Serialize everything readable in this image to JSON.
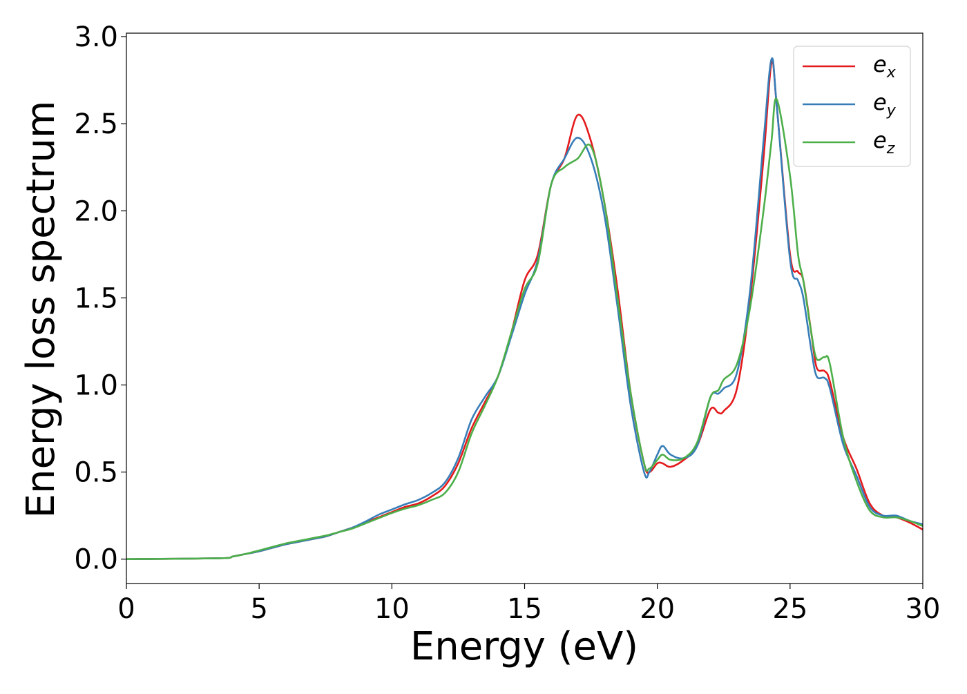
{
  "chart_data": {
    "type": "line",
    "title": "",
    "xlabel": "Energy (eV)",
    "ylabel": "Energy loss spectrum",
    "xlim": [
      0,
      30
    ],
    "ylim": [
      -0.14,
      3.02
    ],
    "xticks": [
      0,
      5,
      10,
      15,
      20,
      25,
      30
    ],
    "xtick_labels": [
      "0",
      "5",
      "10",
      "15",
      "20",
      "25",
      "30"
    ],
    "yticks": [
      0.0,
      0.5,
      1.0,
      1.5,
      2.0,
      2.5,
      3.0
    ],
    "ytick_labels": [
      "0.0",
      "0.5",
      "1.0",
      "1.5",
      "2.0",
      "2.5",
      "3.0"
    ],
    "grid": false,
    "legend_position": "top-right",
    "series": [
      {
        "name": "e_x",
        "label_base": "e",
        "label_sub": "x",
        "color": "#e41a1c",
        "x": [
          0,
          3.5,
          4,
          4.5,
          5,
          5.5,
          6,
          6.5,
          7,
          7.5,
          8,
          8.5,
          9,
          9.5,
          10,
          10.5,
          11,
          11.5,
          12,
          12.5,
          13,
          13.5,
          14,
          14.5,
          15,
          15.5,
          16,
          16.5,
          17,
          17.5,
          18,
          18.5,
          19,
          19.5,
          19.7,
          20,
          20.2,
          20.5,
          21,
          21.5,
          22,
          22.3,
          22.5,
          23,
          23.5,
          24,
          24.3,
          24.5,
          25,
          25.3,
          25.5,
          25.8,
          26,
          26.3,
          26.5,
          27,
          27.5,
          28,
          28.5,
          29,
          29.5,
          30
        ],
        "y": [
          0.0,
          0.005,
          0.015,
          0.03,
          0.045,
          0.065,
          0.085,
          0.1,
          0.115,
          0.13,
          0.155,
          0.18,
          0.21,
          0.24,
          0.27,
          0.3,
          0.32,
          0.36,
          0.42,
          0.55,
          0.75,
          0.9,
          1.05,
          1.3,
          1.6,
          1.75,
          2.15,
          2.3,
          2.55,
          2.4,
          2.05,
          1.55,
          0.95,
          0.55,
          0.5,
          0.55,
          0.55,
          0.53,
          0.57,
          0.65,
          0.86,
          0.84,
          0.85,
          0.98,
          1.5,
          2.3,
          2.85,
          2.6,
          1.75,
          1.65,
          1.6,
          1.3,
          1.1,
          1.08,
          1.02,
          0.7,
          0.52,
          0.32,
          0.25,
          0.24,
          0.21,
          0.17
        ]
      },
      {
        "name": "e_y",
        "label_base": "e",
        "label_sub": "y",
        "color": "#377eb8",
        "x": [
          0,
          3.5,
          4,
          4.5,
          5,
          5.5,
          6,
          6.5,
          7,
          7.5,
          8,
          8.5,
          9,
          9.5,
          10,
          10.5,
          11,
          11.5,
          12,
          12.5,
          13,
          13.5,
          14,
          14.5,
          15,
          15.5,
          16,
          16.5,
          17,
          17.5,
          18,
          18.5,
          19,
          19.5,
          19.7,
          20,
          20.2,
          20.5,
          21,
          21.5,
          22,
          22.3,
          22.5,
          23,
          23.5,
          24,
          24.3,
          24.5,
          25,
          25.3,
          25.5,
          25.8,
          26,
          26.3,
          26.5,
          27,
          27.5,
          28,
          28.5,
          29,
          29.5,
          30
        ],
        "y": [
          0.0,
          0.005,
          0.015,
          0.03,
          0.045,
          0.065,
          0.085,
          0.1,
          0.115,
          0.13,
          0.155,
          0.18,
          0.215,
          0.255,
          0.285,
          0.315,
          0.34,
          0.38,
          0.44,
          0.58,
          0.8,
          0.93,
          1.05,
          1.28,
          1.52,
          1.72,
          2.15,
          2.3,
          2.42,
          2.3,
          1.98,
          1.45,
          0.88,
          0.5,
          0.5,
          0.6,
          0.65,
          0.6,
          0.58,
          0.65,
          0.93,
          0.95,
          0.98,
          1.07,
          1.55,
          2.4,
          2.87,
          2.6,
          1.72,
          1.6,
          1.5,
          1.2,
          1.05,
          1.04,
          0.98,
          0.66,
          0.48,
          0.3,
          0.25,
          0.25,
          0.22,
          0.2
        ]
      },
      {
        "name": "e_z",
        "label_base": "e",
        "label_sub": "z",
        "color": "#4daf4a",
        "x": [
          0,
          3.5,
          4,
          4.5,
          5,
          5.5,
          6,
          6.5,
          7,
          7.5,
          8,
          8.5,
          9,
          9.5,
          10,
          10.5,
          11,
          11.5,
          12,
          12.5,
          13,
          13.5,
          14,
          14.5,
          15,
          15.5,
          16,
          16.5,
          17,
          17.5,
          18,
          18.5,
          19,
          19.5,
          19.7,
          20,
          20.2,
          20.5,
          21,
          21.5,
          22,
          22.3,
          22.5,
          23,
          23.5,
          24,
          24.3,
          24.5,
          25,
          25.3,
          25.5,
          25.8,
          26,
          26.3,
          26.5,
          27,
          27.5,
          28,
          28.5,
          29,
          29.5,
          30
        ],
        "y": [
          0.0,
          0.005,
          0.015,
          0.03,
          0.05,
          0.07,
          0.09,
          0.105,
          0.12,
          0.135,
          0.155,
          0.175,
          0.205,
          0.235,
          0.265,
          0.29,
          0.31,
          0.34,
          0.38,
          0.5,
          0.72,
          0.88,
          1.05,
          1.3,
          1.55,
          1.7,
          2.15,
          2.25,
          2.3,
          2.37,
          2.05,
          1.5,
          0.95,
          0.55,
          0.52,
          0.57,
          0.6,
          0.57,
          0.58,
          0.67,
          0.93,
          0.97,
          1.03,
          1.12,
          1.45,
          2.0,
          2.4,
          2.64,
          2.2,
          1.75,
          1.6,
          1.3,
          1.15,
          1.16,
          1.12,
          0.7,
          0.45,
          0.28,
          0.24,
          0.24,
          0.22,
          0.19
        ]
      }
    ]
  }
}
